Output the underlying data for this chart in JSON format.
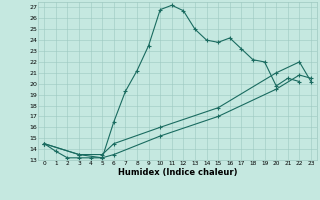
{
  "title": "",
  "xlabel": "Humidex (Indice chaleur)",
  "bg_color": "#c5e8e0",
  "grid_color": "#9dc8c0",
  "line_color": "#1a6b60",
  "xlim": [
    -0.5,
    23.5
  ],
  "ylim": [
    13,
    27.5
  ],
  "yticks": [
    13,
    14,
    15,
    16,
    17,
    18,
    19,
    20,
    21,
    22,
    23,
    24,
    25,
    26,
    27
  ],
  "xticks": [
    0,
    1,
    2,
    3,
    4,
    5,
    6,
    7,
    8,
    9,
    10,
    11,
    12,
    13,
    14,
    15,
    16,
    17,
    18,
    19,
    20,
    21,
    22,
    23
  ],
  "line1_x": [
    0,
    1,
    2,
    3,
    4,
    5,
    6,
    7,
    8,
    9,
    10,
    11,
    12,
    13,
    14,
    15,
    16,
    17,
    18,
    19,
    20,
    21,
    22
  ],
  "line1_y": [
    14.5,
    13.8,
    13.2,
    13.2,
    13.2,
    13.2,
    16.5,
    19.3,
    21.2,
    23.5,
    26.8,
    27.2,
    26.7,
    25.0,
    24.0,
    23.8,
    24.2,
    23.2,
    22.2,
    22.0,
    19.8,
    20.5,
    20.2
  ],
  "line2_x": [
    0,
    3,
    5,
    6,
    10,
    15,
    20,
    22,
    23
  ],
  "line2_y": [
    14.5,
    13.5,
    13.2,
    13.5,
    15.2,
    17.0,
    19.5,
    20.8,
    20.5
  ],
  "line3_x": [
    0,
    3,
    5,
    6,
    10,
    15,
    20,
    22,
    23
  ],
  "line3_y": [
    14.5,
    13.5,
    13.5,
    14.5,
    16.0,
    17.8,
    21.0,
    22.0,
    20.2
  ]
}
